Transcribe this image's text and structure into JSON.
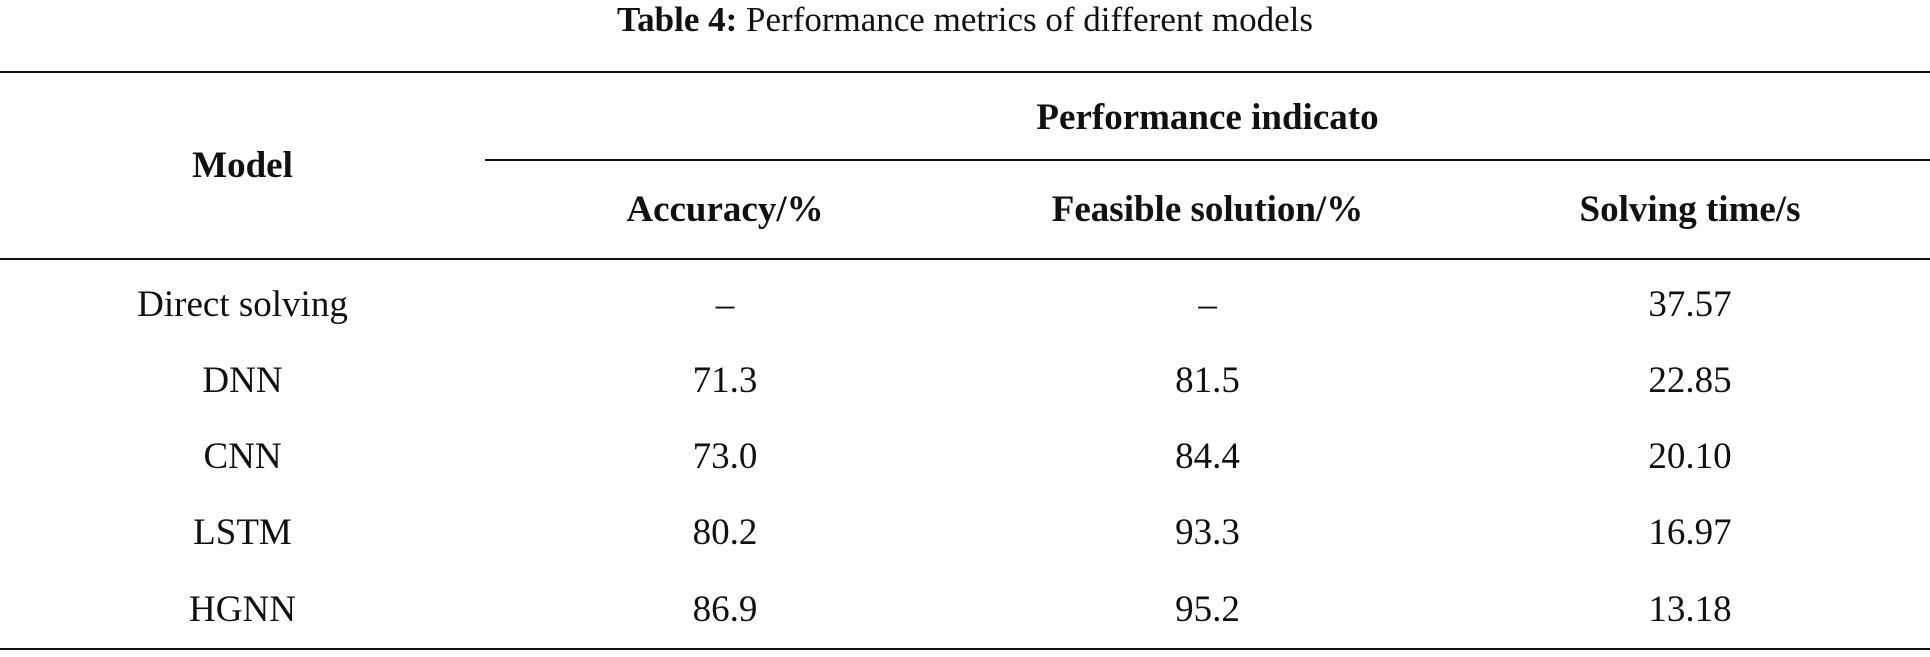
{
  "caption": {
    "label": "Table 4:",
    "text": " Performance metrics of different models"
  },
  "table": {
    "model_header": "Model",
    "group_header": "Performance indicato",
    "columns": [
      "Accuracy/%",
      "Feasible solution/%",
      "Solving time/s"
    ],
    "rows": [
      {
        "model": "Direct solving",
        "accuracy": "–",
        "feasible": "–",
        "time": "37.57"
      },
      {
        "model": "DNN",
        "accuracy": "71.3",
        "feasible": "81.5",
        "time": "22.85"
      },
      {
        "model": "CNN",
        "accuracy": "73.0",
        "feasible": "84.4",
        "time": "20.10"
      },
      {
        "model": "LSTM",
        "accuracy": "80.2",
        "feasible": "93.3",
        "time": "16.97"
      },
      {
        "model": "HGNN",
        "accuracy": "86.9",
        "feasible": "95.2",
        "time": "13.18"
      }
    ]
  }
}
